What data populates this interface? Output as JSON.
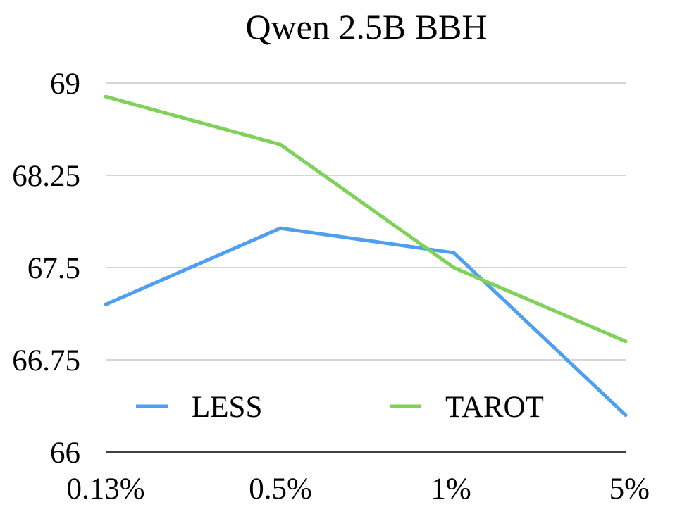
{
  "chart_data": {
    "type": "line",
    "title": "Qwen 2.5B BBH",
    "xlabel": "",
    "ylabel": "",
    "categories": [
      "0.13%",
      "0.5%",
      "1%",
      "5%"
    ],
    "ylim": [
      66,
      69
    ],
    "yticks": [
      "66",
      "66.75",
      "67.5",
      "68.25",
      "69"
    ],
    "grid": true,
    "legend_position": "bottom",
    "series": [
      {
        "name": "LESS",
        "color": "#4f9ff0",
        "values": [
          67.2,
          67.82,
          67.62,
          66.3
        ]
      },
      {
        "name": "TAROT",
        "color": "#7fd15a",
        "values": [
          68.89,
          68.5,
          67.5,
          66.9
        ]
      }
    ]
  }
}
